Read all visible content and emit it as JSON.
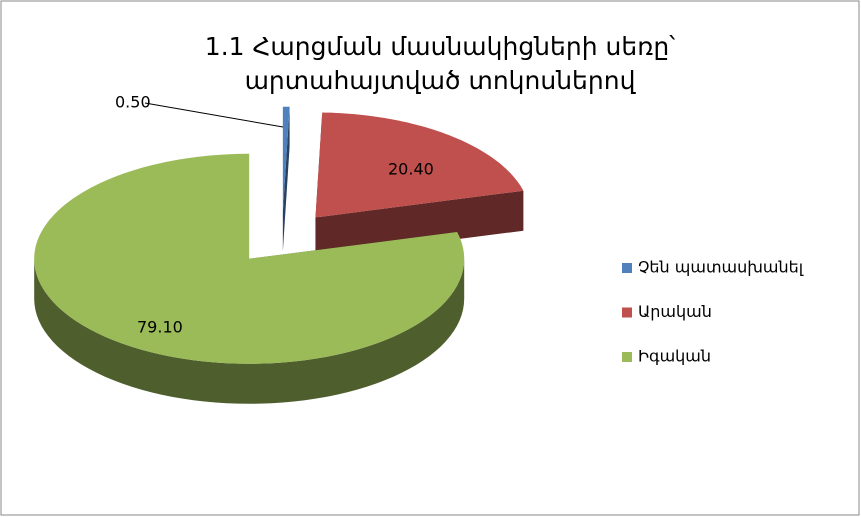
{
  "chart_data": {
    "type": "pie3d",
    "title": "1.1 Հարցման մասնակիցների սեռը՝ արտահայտված տոկոսներով",
    "categories": [
      "Չեն պատասխանել",
      "Արական",
      "Իգական"
    ],
    "values": [
      0.5,
      20.4,
      79.1
    ],
    "value_labels": [
      "0.50",
      "20.40",
      "79.10"
    ],
    "colors": [
      "#4f81bd",
      "#c0504d",
      "#9bbb59"
    ],
    "legend": "right"
  }
}
